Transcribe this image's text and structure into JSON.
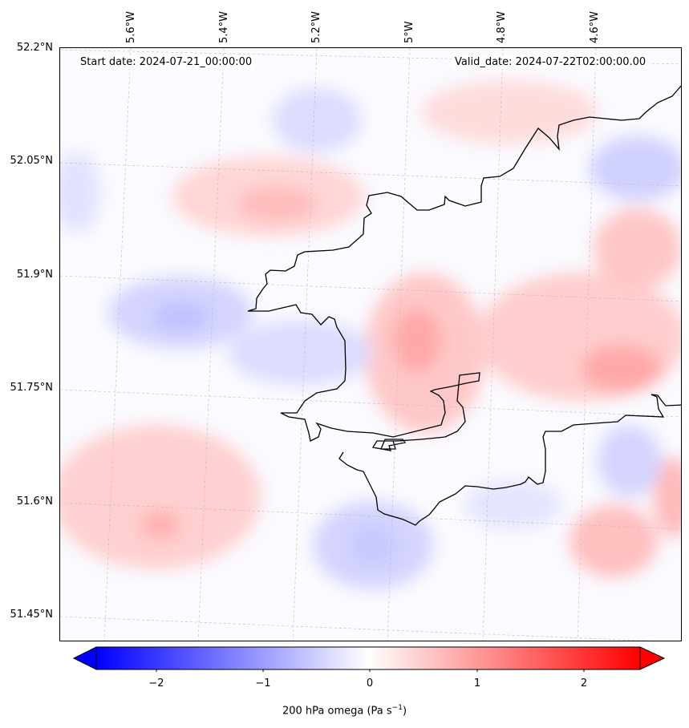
{
  "header": {
    "start_date": "Start date: 2024-07-21_00:00:00",
    "valid_date": "Valid_date: 2024-07-22T02:00:00.00"
  },
  "axes": {
    "lat_labels": [
      "52.2°N",
      "52.05°N",
      "51.9°N",
      "51.75°N",
      "51.6°N",
      "51.45°N"
    ],
    "lon_labels": [
      "5.6°W",
      "5.4°W",
      "5.2°W",
      "5°W",
      "4.8°W",
      "4.6°W"
    ]
  },
  "colorbar": {
    "ticks": [
      "−2",
      "−1",
      "0",
      "1",
      "2"
    ],
    "label_prefix": "200 hPa omega (Pa s",
    "label_exp": "−1",
    "label_suffix": ")",
    "min": -2.6,
    "max": 2.6,
    "colors": {
      "low": "#0000ff",
      "mid": "#ffffff",
      "high": "#ff0000"
    }
  },
  "map": {
    "background": "#fafaff",
    "coastline_color": "#000000",
    "gridline_color": "#bbbbbb"
  }
}
